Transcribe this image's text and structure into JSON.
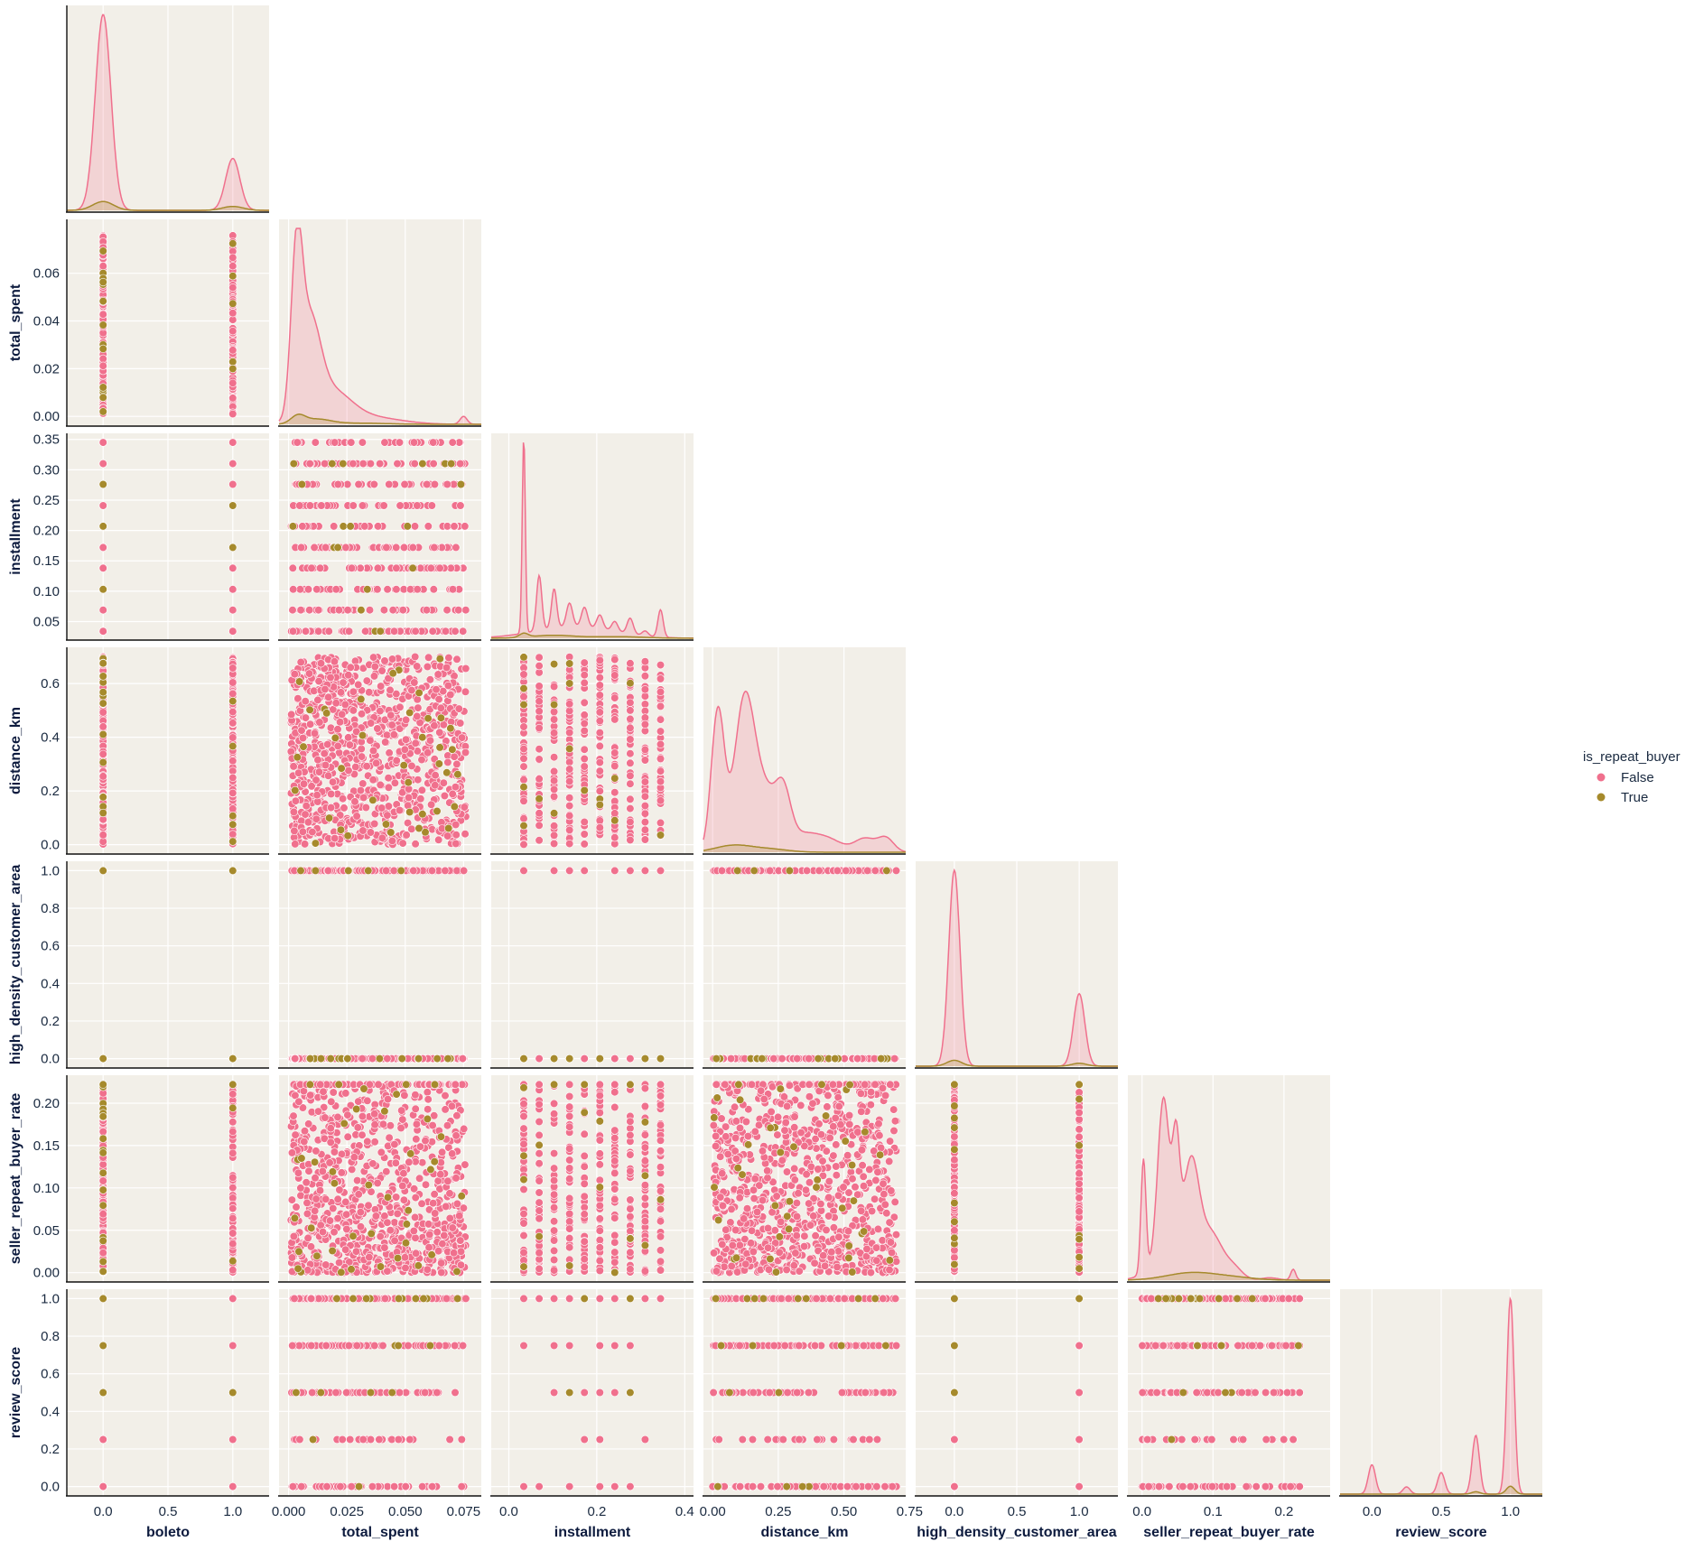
{
  "chart_data": {
    "type": "scatter",
    "layout": "pairplot-lower-corner",
    "hue": "is_repeat_buyer",
    "legend": {
      "title": "is_repeat_buyer",
      "placement": "center-right",
      "entries": [
        {
          "label": "False",
          "color": "#f0708d"
        },
        {
          "label": "True",
          "color": "#a68a2c"
        }
      ]
    },
    "colors": {
      "false": "#f0708d",
      "true": "#a68a2c",
      "panel_bg": "#f2efe8",
      "grid": "#ffffff"
    },
    "variables": [
      {
        "name": "boleto",
        "range": [
          -0.28,
          1.28
        ],
        "ticks": [
          {
            "v": 0.0,
            "t": "0.0"
          },
          {
            "v": 0.5,
            "t": "0.5"
          },
          {
            "v": 1.0,
            "t": "1.0"
          }
        ],
        "levels": [
          0,
          1
        ]
      },
      {
        "name": "total_spent",
        "range": [
          -0.0041,
          0.0826
        ],
        "ticks": [
          {
            "v": 0.0,
            "t": "0.00"
          },
          {
            "v": 0.02,
            "t": "0.02"
          },
          {
            "v": 0.04,
            "t": "0.04"
          },
          {
            "v": 0.06,
            "t": "0.06"
          }
        ],
        "xticks": [
          {
            "v": 0.0,
            "t": "0.000"
          },
          {
            "v": 0.025,
            "t": "0.025"
          },
          {
            "v": 0.05,
            "t": "0.050"
          },
          {
            "v": 0.075,
            "t": "0.075"
          }
        ],
        "min": 0.001,
        "max": 0.076
      },
      {
        "name": "installment",
        "range": [
          0.0195,
          0.36
        ],
        "ticks": [
          {
            "v": 0.05,
            "t": "0.05"
          },
          {
            "v": 0.1,
            "t": "0.10"
          },
          {
            "v": 0.15,
            "t": "0.15"
          },
          {
            "v": 0.2,
            "t": "0.20"
          },
          {
            "v": 0.25,
            "t": "0.25"
          },
          {
            "v": 0.3,
            "t": "0.30"
          },
          {
            "v": 0.35,
            "t": "0.35"
          }
        ],
        "xrange": [
          -0.04,
          0.42
        ],
        "xticks": [
          {
            "v": 0.0,
            "t": "0.0"
          },
          {
            "v": 0.2,
            "t": "0.2"
          },
          {
            "v": 0.4,
            "t": "0.4"
          }
        ],
        "levels": [
          0.034,
          0.069,
          0.103,
          0.138,
          0.172,
          0.207,
          0.241,
          0.276,
          0.31,
          0.345
        ]
      },
      {
        "name": "distance_km",
        "range": [
          -0.035,
          0.735
        ],
        "ticks": [
          {
            "v": 0.0,
            "t": "0.0"
          },
          {
            "v": 0.2,
            "t": "0.2"
          },
          {
            "v": 0.4,
            "t": "0.4"
          },
          {
            "v": 0.6,
            "t": "0.6"
          }
        ],
        "xticks": [
          {
            "v": 0.0,
            "t": "0.00"
          },
          {
            "v": 0.25,
            "t": "0.25"
          },
          {
            "v": 0.5,
            "t": "0.50"
          },
          {
            "v": 0.75,
            "t": "0.75"
          }
        ],
        "min": 0.0,
        "max": 0.7
      },
      {
        "name": "high_density_customer_area",
        "range": [
          -0.05,
          1.05
        ],
        "ticks": [
          {
            "v": 0.0,
            "t": "0.0"
          },
          {
            "v": 0.2,
            "t": "0.2"
          },
          {
            "v": 0.4,
            "t": "0.4"
          },
          {
            "v": 0.6,
            "t": "0.6"
          },
          {
            "v": 0.8,
            "t": "0.8"
          },
          {
            "v": 1.0,
            "t": "1.0"
          }
        ],
        "xrange": [
          -0.31,
          1.31
        ],
        "xticks": [
          {
            "v": 0.0,
            "t": "0.0"
          },
          {
            "v": 0.5,
            "t": "0.5"
          },
          {
            "v": 1.0,
            "t": "1.0"
          }
        ],
        "levels": [
          0,
          1
        ]
      },
      {
        "name": "seller_repeat_buyer_rate",
        "range": [
          -0.011,
          0.233
        ],
        "ticks": [
          {
            "v": 0.0,
            "t": "0.00"
          },
          {
            "v": 0.05,
            "t": "0.05"
          },
          {
            "v": 0.1,
            "t": "0.10"
          },
          {
            "v": 0.15,
            "t": "0.15"
          },
          {
            "v": 0.2,
            "t": "0.20"
          }
        ],
        "xrange": [
          -0.02,
          0.265
        ],
        "xticks": [
          {
            "v": 0.0,
            "t": "0.0"
          },
          {
            "v": 0.1,
            "t": "0.1"
          },
          {
            "v": 0.2,
            "t": "0.2"
          }
        ],
        "min": 0.0,
        "max": 0.222
      },
      {
        "name": "review_score",
        "range": [
          -0.05,
          1.05
        ],
        "ticks": [
          {
            "v": 0.0,
            "t": "0.0"
          },
          {
            "v": 0.2,
            "t": "0.2"
          },
          {
            "v": 0.4,
            "t": "0.4"
          },
          {
            "v": 0.6,
            "t": "0.6"
          },
          {
            "v": 0.8,
            "t": "0.8"
          },
          {
            "v": 1.0,
            "t": "1.0"
          }
        ],
        "xrange": [
          -0.23,
          1.23
        ],
        "xticks": [
          {
            "v": 0.0,
            "t": "0.0"
          },
          {
            "v": 0.5,
            "t": "0.5"
          },
          {
            "v": 1.0,
            "t": "1.0"
          }
        ],
        "levels": [
          0,
          0.25,
          0.5,
          0.75,
          1.0
        ]
      }
    ],
    "diagonal_kde": [
      {
        "var": "boleto",
        "false_peaks": [
          [
            0.0,
            1.0,
            0.06
          ],
          [
            1.0,
            0.265,
            0.055
          ]
        ],
        "true_peaks": [
          [
            0.0,
            0.045,
            0.08
          ],
          [
            1.0,
            0.02,
            0.08
          ]
        ]
      },
      {
        "var": "total_spent",
        "false_peaks": [
          [
            0.0035,
            0.78,
            0.0024
          ],
          [
            0.009,
            0.46,
            0.0045
          ],
          [
            0.018,
            0.16,
            0.0085
          ],
          [
            0.035,
            0.035,
            0.013
          ],
          [
            0.075,
            0.04,
            0.0015
          ]
        ],
        "true_peaks": [
          [
            0.004,
            0.04,
            0.003
          ],
          [
            0.012,
            0.025,
            0.006
          ],
          [
            0.03,
            0.006,
            0.012
          ]
        ]
      },
      {
        "var": "installment",
        "false_peaks": [
          [
            0.034,
            1.0,
            0.0035
          ],
          [
            0.069,
            0.28,
            0.006
          ],
          [
            0.103,
            0.2,
            0.006
          ],
          [
            0.138,
            0.12,
            0.007
          ],
          [
            0.172,
            0.1,
            0.007
          ],
          [
            0.207,
            0.07,
            0.007
          ],
          [
            0.241,
            0.05,
            0.007
          ],
          [
            0.276,
            0.08,
            0.007
          ],
          [
            0.31,
            0.025,
            0.007
          ],
          [
            0.345,
            0.14,
            0.006
          ],
          [
            0.15,
            0.06,
            0.09
          ]
        ],
        "true_peaks": [
          [
            0.034,
            0.02,
            0.01
          ],
          [
            0.1,
            0.015,
            0.05
          ],
          [
            0.25,
            0.008,
            0.06
          ]
        ]
      },
      {
        "var": "distance_km",
        "false_peaks": [
          [
            0.02,
            0.72,
            0.025
          ],
          [
            0.12,
            0.73,
            0.038
          ],
          [
            0.2,
            0.3,
            0.05
          ],
          [
            0.27,
            0.22,
            0.028
          ],
          [
            0.35,
            0.09,
            0.06
          ],
          [
            0.45,
            0.05,
            0.05
          ],
          [
            0.58,
            0.07,
            0.04
          ],
          [
            0.66,
            0.07,
            0.03
          ]
        ],
        "true_peaks": [
          [
            0.08,
            0.035,
            0.07
          ],
          [
            0.22,
            0.015,
            0.07
          ]
        ]
      },
      {
        "var": "high_density_customer_area",
        "false_peaks": [
          [
            0.0,
            1.0,
            0.045
          ],
          [
            1.0,
            0.37,
            0.045
          ]
        ],
        "true_peaks": [
          [
            0.0,
            0.03,
            0.06
          ],
          [
            1.0,
            0.015,
            0.06
          ]
        ]
      },
      {
        "var": "seller_repeat_buyer_rate",
        "false_peaks": [
          [
            0.002,
            0.58,
            0.0035
          ],
          [
            0.03,
            0.78,
            0.008
          ],
          [
            0.048,
            0.49,
            0.005
          ],
          [
            0.07,
            0.38,
            0.01
          ],
          [
            0.1,
            0.14,
            0.015
          ],
          [
            0.13,
            0.05,
            0.012
          ],
          [
            0.18,
            0.012,
            0.012
          ],
          [
            0.213,
            0.055,
            0.0035
          ],
          [
            0.06,
            0.25,
            0.03
          ]
        ],
        "true_peaks": [
          [
            0.07,
            0.038,
            0.035
          ],
          [
            0.13,
            0.012,
            0.03
          ]
        ]
      },
      {
        "var": "review_score",
        "false_peaks": [
          [
            0.0,
            0.15,
            0.026
          ],
          [
            0.25,
            0.037,
            0.026
          ],
          [
            0.5,
            0.11,
            0.026
          ],
          [
            0.75,
            0.3,
            0.026
          ],
          [
            1.0,
            1.0,
            0.026
          ]
        ],
        "true_peaks": [
          [
            0.75,
            0.012,
            0.03
          ],
          [
            1.0,
            0.04,
            0.03
          ]
        ]
      }
    ]
  }
}
